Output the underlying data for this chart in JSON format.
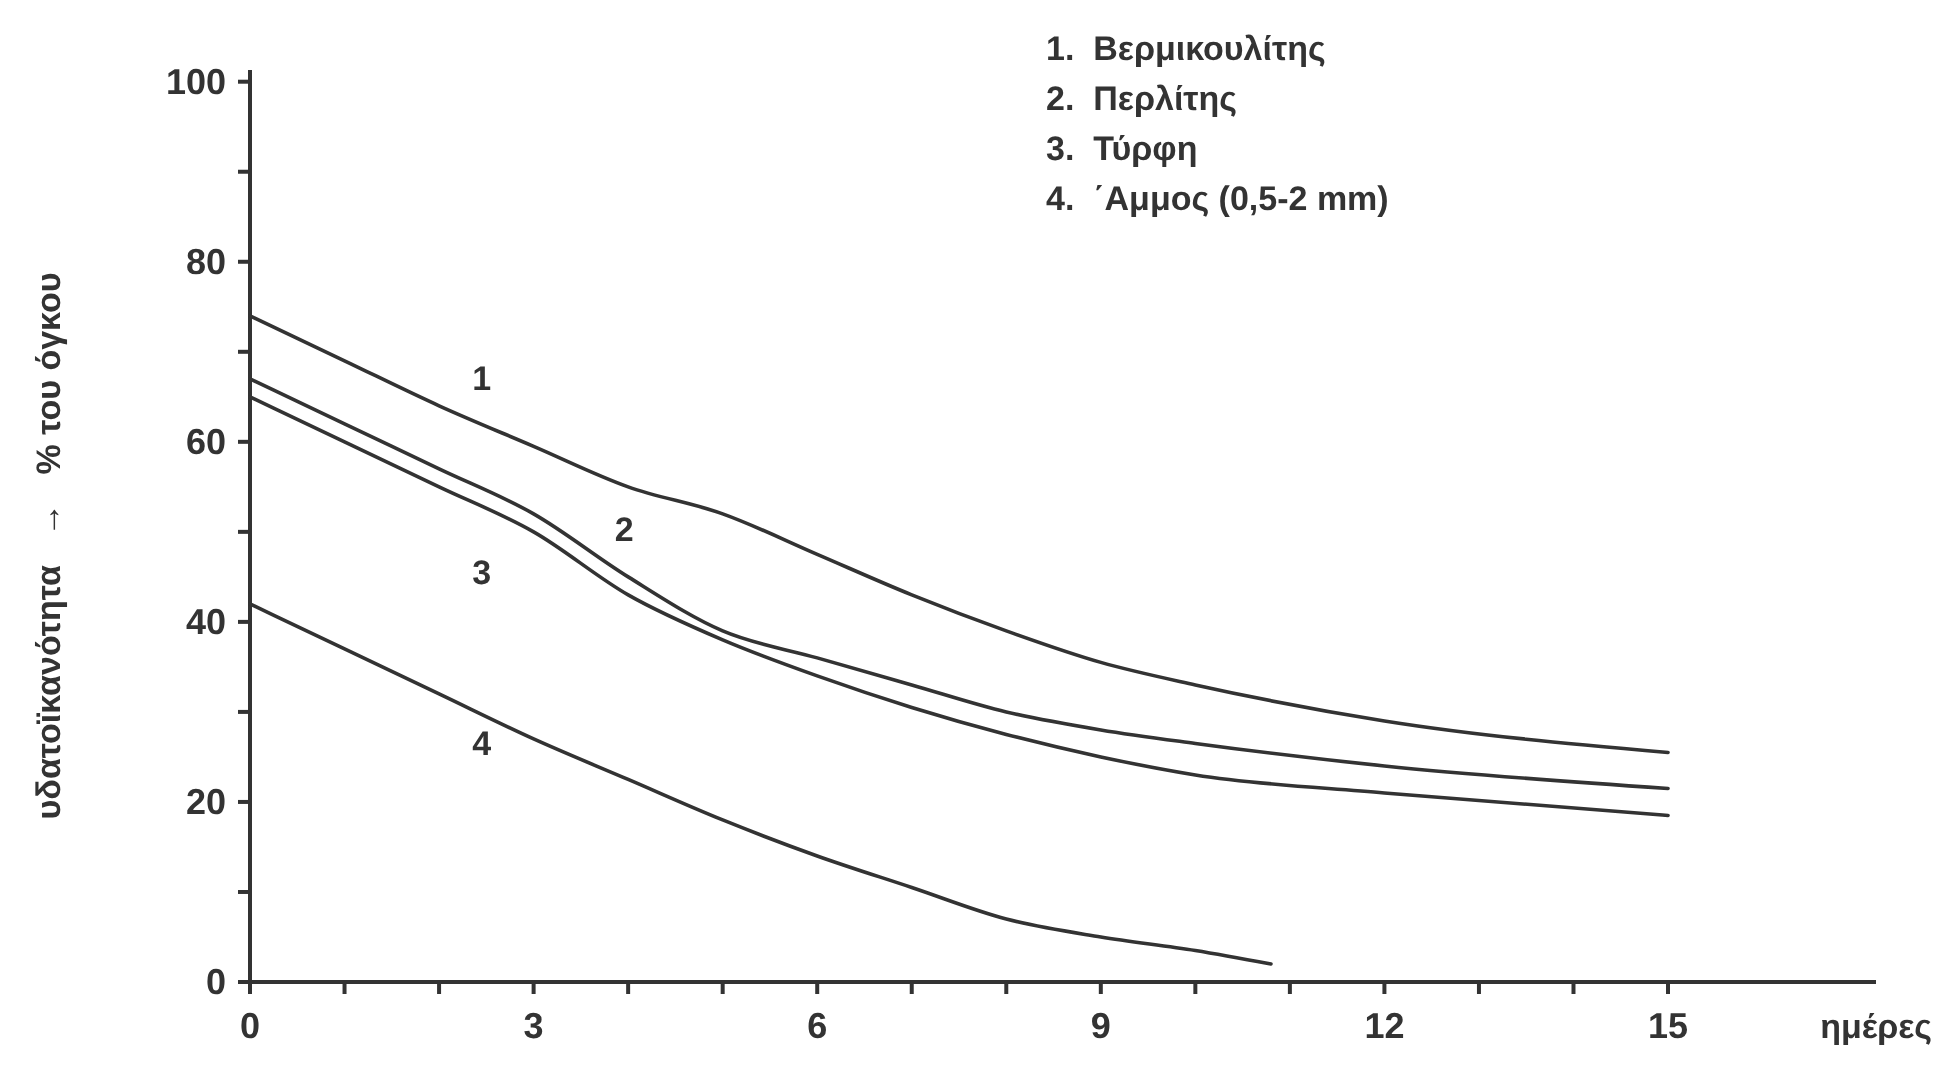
{
  "chart_data": {
    "type": "line",
    "xlabel": "ημέρες",
    "ylabel": "υδατοϊκανότητα   →   % του όγκου",
    "xlim": [
      0,
      17.2
    ],
    "ylim": [
      0,
      101.3
    ],
    "xticks": [
      0,
      {
        "value": 1,
        "label": null
      },
      {
        "value": 2,
        "label": null
      },
      3,
      {
        "value": 4,
        "label": null
      },
      {
        "value": 5,
        "label": null
      },
      6,
      {
        "value": 7,
        "label": null
      },
      {
        "value": 8,
        "label": null
      },
      9,
      {
        "value": 10,
        "label": null
      },
      {
        "value": 11,
        "label": null
      },
      12,
      {
        "value": 13,
        "label": null
      },
      {
        "value": 14,
        "label": null
      },
      15
    ],
    "yticks": [
      0,
      {
        "value": 10,
        "label": null
      },
      20,
      {
        "value": 30,
        "label": null
      },
      40,
      {
        "value": 50,
        "label": null
      },
      60,
      {
        "value": 70,
        "label": null
      },
      80,
      {
        "value": 90,
        "label": null
      },
      100
    ],
    "grid": false,
    "legend": false,
    "marker": "none",
    "line_style": "solid",
    "series": [
      {
        "name": "1",
        "color": "#333333",
        "x": [
          0,
          1,
          2,
          3,
          4,
          5,
          6,
          7,
          8,
          9,
          10,
          12,
          15
        ],
        "values": [
          74,
          69,
          64,
          59.5,
          55,
          52,
          47.5,
          43,
          39,
          35.5,
          33,
          29,
          25.5
        ]
      },
      {
        "name": "2",
        "color": "#333333",
        "x": [
          0,
          1,
          2,
          3,
          4,
          5,
          6,
          7,
          8,
          9,
          10,
          12,
          15
        ],
        "values": [
          67,
          62,
          57,
          52,
          45,
          39,
          36,
          33,
          30,
          28,
          26.5,
          24,
          21.5
        ]
      },
      {
        "name": "3",
        "color": "#333333",
        "x": [
          0,
          1,
          2,
          3,
          4,
          5,
          6,
          7,
          8,
          9,
          10,
          12,
          15
        ],
        "values": [
          65,
          60,
          55,
          50,
          43,
          38,
          34,
          30.5,
          27.5,
          25,
          23,
          21,
          18.5
        ]
      },
      {
        "name": "4",
        "color": "#333333",
        "x": [
          0,
          1,
          2,
          3,
          4,
          5,
          6,
          7,
          8,
          9,
          10,
          10.8
        ],
        "values": [
          42,
          37,
          32,
          27,
          22.5,
          18,
          14,
          10.5,
          7,
          5,
          3.5,
          2
        ]
      }
    ],
    "annotations": [
      "1.  Βερμικουλίτης",
      "2.  Περλίτης",
      "3.  Τύρφη",
      "4.  ΄Αμμος (0,5-2 mm)"
    ]
  }
}
